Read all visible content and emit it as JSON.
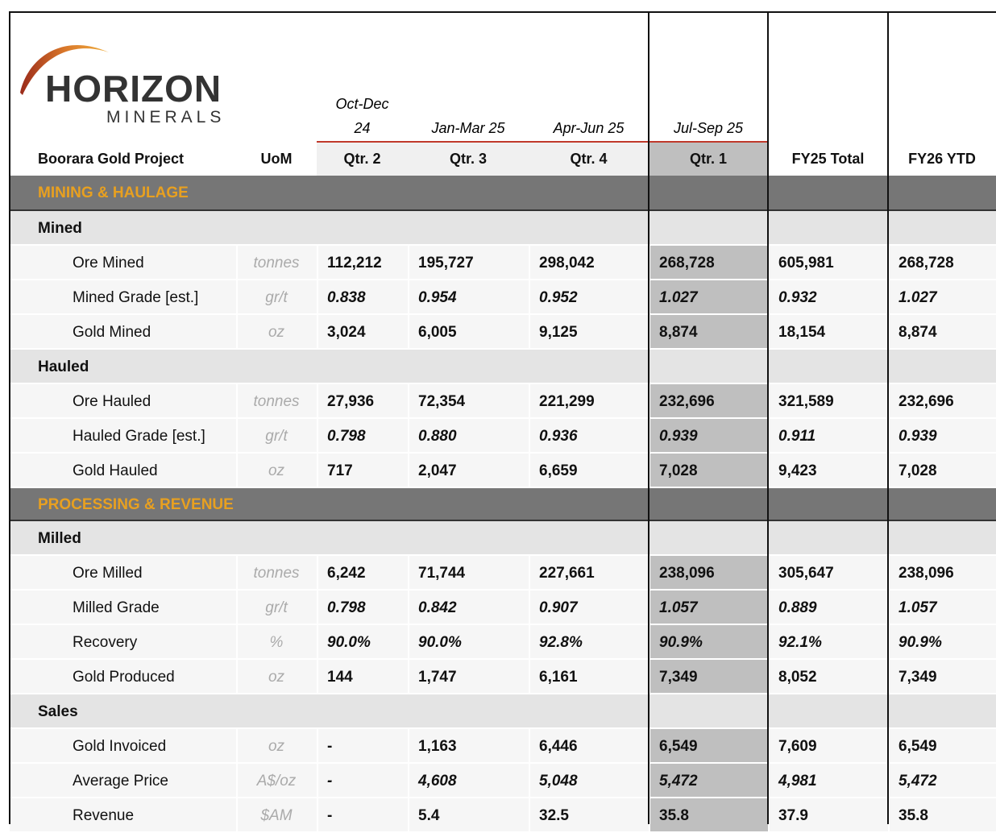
{
  "header": {
    "logo_name": "HORIZON",
    "logo_sub": "MINERALS",
    "project": "Boorara Gold Project",
    "uom": "UoM",
    "columns": [
      {
        "period": "Oct-Dec 24",
        "label": "Qtr. 2"
      },
      {
        "period": "Jan-Mar 25",
        "label": "Qtr. 3"
      },
      {
        "period": "Apr-Jun 25",
        "label": "Qtr. 4"
      },
      {
        "period": "Jul-Sep 25",
        "label": "Qtr. 1",
        "highlight": true
      },
      {
        "label": "FY25 Total"
      },
      {
        "label": "FY26 YTD"
      }
    ]
  },
  "rows": [
    {
      "kind": "section",
      "label": "MINING & HAULAGE"
    },
    {
      "kind": "group",
      "label": "Mined"
    },
    {
      "kind": "data",
      "label": "Ore Mined",
      "uom": "tonnes",
      "values": [
        "112,212",
        "195,727",
        "298,042",
        "268,728",
        "605,981",
        "268,728"
      ]
    },
    {
      "kind": "data",
      "label": "Mined Grade [est.]",
      "uom": "gr/t",
      "italic": true,
      "values": [
        "0.838",
        "0.954",
        "0.952",
        "1.027",
        "0.932",
        "1.027"
      ]
    },
    {
      "kind": "data",
      "label": "Gold Mined",
      "uom": "oz",
      "values": [
        "3,024",
        "6,005",
        "9,125",
        "8,874",
        "18,154",
        "8,874"
      ]
    },
    {
      "kind": "group",
      "label": "Hauled"
    },
    {
      "kind": "data",
      "label": "Ore Hauled",
      "uom": "tonnes",
      "values": [
        "27,936",
        "72,354",
        "221,299",
        "232,696",
        "321,589",
        "232,696"
      ]
    },
    {
      "kind": "data",
      "label": "Hauled Grade [est.]",
      "uom": "gr/t",
      "italic": true,
      "values": [
        "0.798",
        "0.880",
        "0.936",
        "0.939",
        "0.911",
        "0.939"
      ]
    },
    {
      "kind": "data",
      "label": "Gold Hauled",
      "uom": "oz",
      "values": [
        "717",
        "2,047",
        "6,659",
        "7,028",
        "9,423",
        "7,028"
      ]
    },
    {
      "kind": "section",
      "label": "PROCESSING & REVENUE"
    },
    {
      "kind": "group",
      "label": "Milled"
    },
    {
      "kind": "data",
      "label": "Ore Milled",
      "uom": "tonnes",
      "values": [
        "6,242",
        "71,744",
        "227,661",
        "238,096",
        "305,647",
        "238,096"
      ]
    },
    {
      "kind": "data",
      "label": "Milled Grade",
      "uom": "gr/t",
      "italic": true,
      "values": [
        "0.798",
        "0.842",
        "0.907",
        "1.057",
        "0.889",
        "1.057"
      ]
    },
    {
      "kind": "data",
      "label": "Recovery",
      "uom": "%",
      "italic": true,
      "values": [
        "90.0%",
        "90.0%",
        "92.8%",
        "90.9%",
        "92.1%",
        "90.9%"
      ]
    },
    {
      "kind": "data",
      "label": "Gold Produced",
      "uom": "oz",
      "values": [
        "144",
        "1,747",
        "6,161",
        "7,349",
        "8,052",
        "7,349"
      ]
    },
    {
      "kind": "group",
      "label": "Sales"
    },
    {
      "kind": "data",
      "label": "Gold Invoiced",
      "uom": "oz",
      "values": [
        "-",
        "1,163",
        "6,446",
        "6,549",
        "7,609",
        "6,549"
      ]
    },
    {
      "kind": "data",
      "label": "Average Price",
      "uom": "A$/oz",
      "italic": true,
      "values": [
        "-",
        "4,608",
        "5,048",
        "5,472",
        "4,981",
        "5,472"
      ]
    },
    {
      "kind": "data",
      "label": "Revenue",
      "uom": "$AM",
      "values": [
        "-",
        "5.4",
        "32.5",
        "35.8",
        "37.9",
        "35.8"
      ]
    }
  ]
}
